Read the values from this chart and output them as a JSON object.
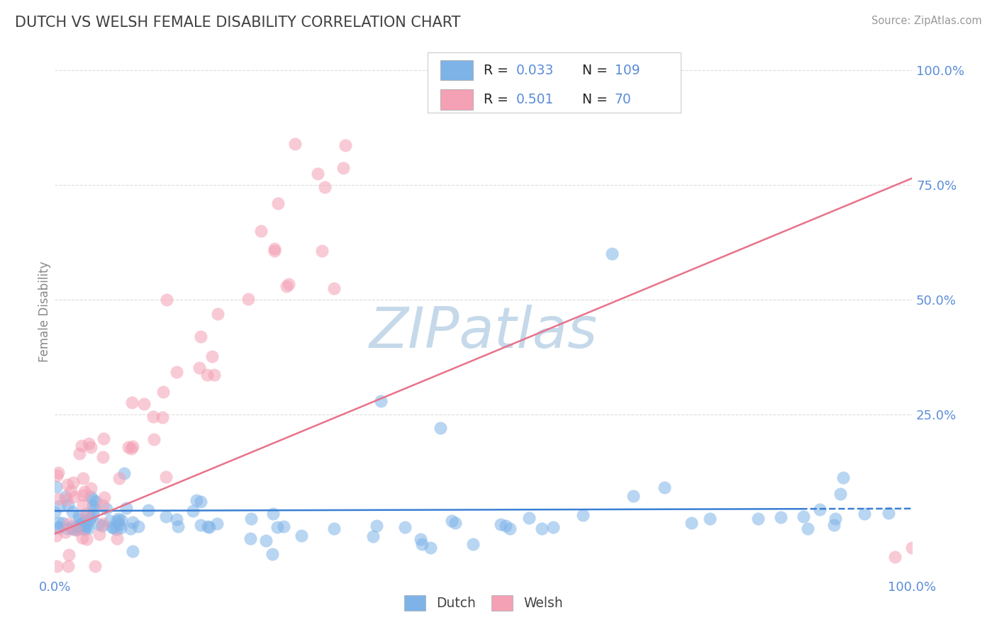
{
  "title": "DUTCH VS WELSH FEMALE DISABILITY CORRELATION CHART",
  "source": "Source: ZipAtlas.com",
  "ylabel": "Female Disability",
  "dutch_color": "#7eb3e8",
  "welsh_color": "#f4a0b5",
  "dutch_line_color": "#3a7fd4",
  "welsh_line_color": "#e8728a",
  "dutch_R": 0.033,
  "dutch_N": 109,
  "welsh_R": 0.501,
  "welsh_N": 70,
  "watermark": "ZIPatlas",
  "watermark_color": "#c5d9ea",
  "background_color": "#ffffff",
  "grid_color": "#dddddd",
  "title_color": "#404040",
  "axis_label_color": "#888888",
  "tick_label_color": "#5b8dd9",
  "legend_label_color": "#222222",
  "legend_value_color": "#5b8dd9"
}
